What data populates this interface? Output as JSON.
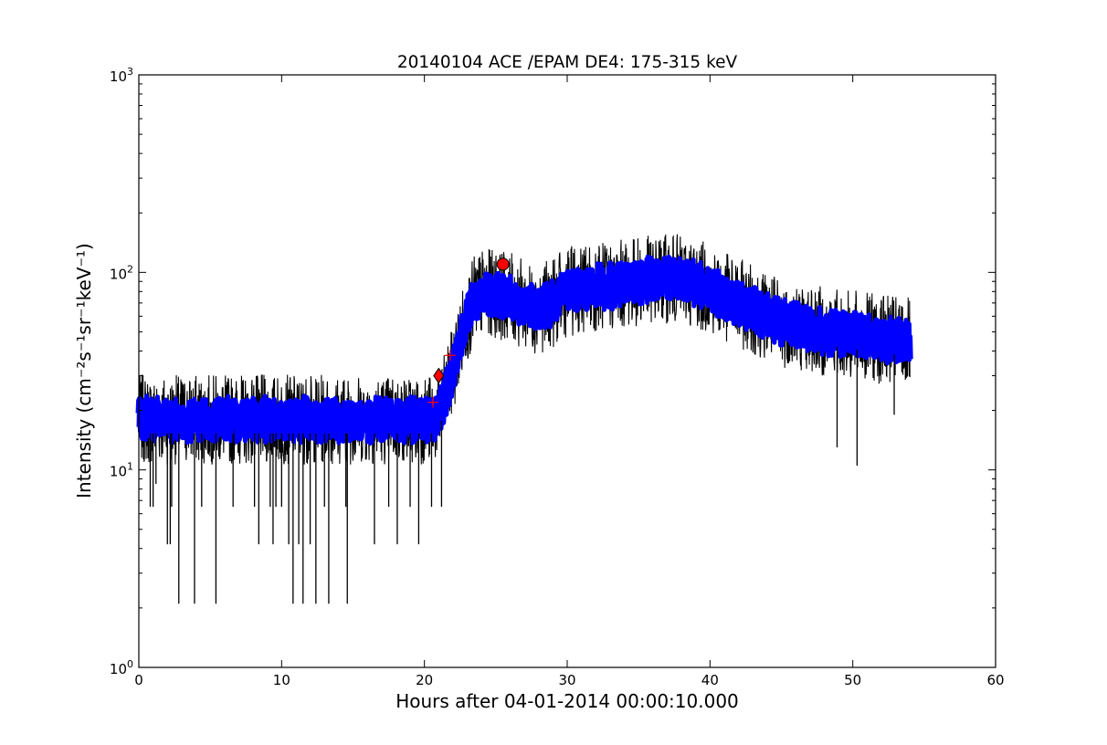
{
  "chart_data": {
    "type": "line",
    "title": "20140104 ACE /EPAM DE4: 175-315 keV",
    "xlabel": "Hours after 04-01-2014 00:00:10.000",
    "ylabel": "Intensity (cm⁻²s⁻¹sr⁻¹keV⁻¹)",
    "xlim": [
      0,
      60
    ],
    "ylim": [
      1,
      1000
    ],
    "yscale": "log",
    "grid": false,
    "x_ticks": [
      0,
      10,
      20,
      30,
      40,
      50,
      60
    ],
    "x_tick_labels": [
      "0",
      "10",
      "20",
      "30",
      "40",
      "50",
      "60"
    ],
    "y_ticks": [
      1,
      10,
      100,
      1000
    ],
    "y_tick_labels": [
      {
        "base": "10",
        "exp": "0"
      },
      {
        "base": "10",
        "exp": "1"
      },
      {
        "base": "10",
        "exp": "2"
      },
      {
        "base": "10",
        "exp": "3"
      }
    ],
    "series": [
      {
        "color": "#000000",
        "style": "noisy raw intensity trace",
        "x": [
          0,
          2,
          4,
          6,
          8,
          10,
          12,
          14,
          16,
          18,
          20,
          20.5,
          21,
          21.5,
          22,
          22.5,
          23,
          23.5,
          24,
          25,
          26,
          27,
          28,
          29,
          30,
          31,
          32,
          33,
          34,
          35,
          36,
          37,
          38,
          39,
          40,
          41,
          42,
          43,
          44,
          45,
          46,
          47,
          48,
          49,
          50,
          51,
          52,
          53,
          54
        ],
        "y": [
          18,
          18,
          18,
          18,
          18,
          18,
          18,
          18,
          18,
          18,
          18,
          18,
          19,
          24,
          32,
          45,
          60,
          72,
          78,
          78,
          75,
          68,
          65,
          70,
          80,
          82,
          85,
          85,
          88,
          90,
          92,
          93,
          92,
          88,
          82,
          75,
          70,
          65,
          60,
          56,
          54,
          52,
          50,
          49,
          48,
          47,
          46,
          45,
          44
        ]
      },
      {
        "color": "#0000ff",
        "style": "smoothed intensity band",
        "x": [
          0,
          2,
          4,
          6,
          8,
          10,
          12,
          14,
          16,
          18,
          20,
          20.5,
          21,
          21.5,
          22,
          22.5,
          23,
          23.5,
          24,
          25,
          26,
          27,
          28,
          29,
          30,
          31,
          32,
          33,
          34,
          35,
          36,
          37,
          38,
          39,
          40,
          41,
          42,
          43,
          44,
          45,
          46,
          47,
          48,
          49,
          50,
          51,
          52,
          53,
          54
        ],
        "y": [
          18,
          18,
          18,
          18,
          18,
          18,
          18,
          18,
          18,
          18,
          18,
          18,
          19,
          24,
          32,
          45,
          60,
          72,
          78,
          78,
          75,
          68,
          65,
          70,
          80,
          82,
          85,
          85,
          88,
          90,
          92,
          93,
          92,
          88,
          82,
          75,
          70,
          65,
          60,
          56,
          54,
          52,
          50,
          49,
          48,
          47,
          46,
          45,
          44
        ]
      }
    ],
    "dips": [
      {
        "x": 0.8,
        "y": 6.5
      },
      {
        "x": 1.0,
        "y": 6.5
      },
      {
        "x": 1.2,
        "y": 8.5
      },
      {
        "x": 2.0,
        "y": 4.2
      },
      {
        "x": 2.2,
        "y": 4.2
      },
      {
        "x": 2.3,
        "y": 6.5
      },
      {
        "x": 2.8,
        "y": 2.1
      },
      {
        "x": 3.9,
        "y": 2.1
      },
      {
        "x": 4.4,
        "y": 6.5
      },
      {
        "x": 5.4,
        "y": 2.1
      },
      {
        "x": 6.6,
        "y": 6.5
      },
      {
        "x": 8.1,
        "y": 6.5
      },
      {
        "x": 8.4,
        "y": 4.2
      },
      {
        "x": 9.2,
        "y": 6.5
      },
      {
        "x": 9.4,
        "y": 4.2
      },
      {
        "x": 9.6,
        "y": 6.5
      },
      {
        "x": 10.0,
        "y": 6.5
      },
      {
        "x": 10.5,
        "y": 4.2
      },
      {
        "x": 10.8,
        "y": 2.1
      },
      {
        "x": 11.2,
        "y": 4.2
      },
      {
        "x": 11.5,
        "y": 2.1
      },
      {
        "x": 12.0,
        "y": 4.2
      },
      {
        "x": 12.4,
        "y": 2.1
      },
      {
        "x": 13.0,
        "y": 6.5
      },
      {
        "x": 13.3,
        "y": 2.1
      },
      {
        "x": 14.5,
        "y": 6.5
      },
      {
        "x": 14.6,
        "y": 2.1
      },
      {
        "x": 16.5,
        "y": 4.2
      },
      {
        "x": 17.5,
        "y": 6.5
      },
      {
        "x": 18.1,
        "y": 4.2
      },
      {
        "x": 19.0,
        "y": 6.5
      },
      {
        "x": 19.6,
        "y": 4.2
      },
      {
        "x": 20.5,
        "y": 6.5
      },
      {
        "x": 21.2,
        "y": 6.5
      },
      {
        "x": 48.9,
        "y": 13.0
      },
      {
        "x": 50.3,
        "y": 10.5
      },
      {
        "x": 52.9,
        "y": 19.0
      }
    ],
    "markers": [
      {
        "type": "diamond",
        "x": 21.0,
        "y": 30,
        "color": "#ff0000"
      },
      {
        "type": "circle",
        "x": 25.5,
        "y": 110,
        "color": "#ff0000"
      },
      {
        "type": "plus",
        "x": 20.6,
        "y": 22,
        "color": "#ff0000"
      },
      {
        "type": "plus",
        "x": 21.8,
        "y": 38,
        "color": "#ff0000"
      }
    ]
  }
}
